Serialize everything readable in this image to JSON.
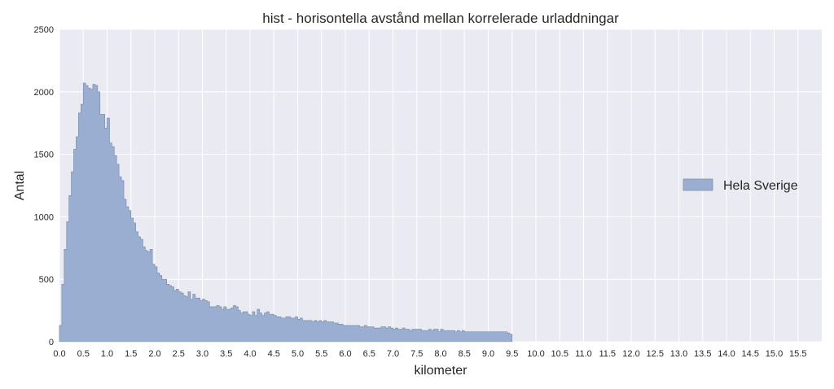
{
  "chart_data": {
    "type": "bar",
    "title": "hist - horisontella avstånd mellan korrelerade urladdningar",
    "xlabel": "kilometer",
    "ylabel": "Antal",
    "xlim": [
      0.0,
      16.0
    ],
    "ylim": [
      0,
      2500
    ],
    "x_ticks": [
      "0.0",
      "0.5",
      "1.0",
      "1.5",
      "2.0",
      "2.5",
      "3.0",
      "3.5",
      "4.0",
      "4.5",
      "5.0",
      "5.5",
      "6.0",
      "6.5",
      "7.0",
      "7.5",
      "8.0",
      "8.5",
      "9.0",
      "9.5",
      "10.0",
      "10.5",
      "11.0",
      "11.5",
      "12.0",
      "12.5",
      "13.0",
      "13.5",
      "14.0",
      "14.5",
      "15.0",
      "15.5"
    ],
    "y_ticks": [
      "0",
      "500",
      "1000",
      "1500",
      "2000",
      "2500"
    ],
    "grid": true,
    "legend_position": "center-right",
    "bin_width": 0.05,
    "bin_start": 0.0,
    "series": [
      {
        "name": "Hela Sverige",
        "color": "#9aaed1",
        "values": [
          130,
          460,
          740,
          960,
          1170,
          1360,
          1540,
          1640,
          1830,
          1900,
          2070,
          2050,
          2030,
          2020,
          2060,
          2050,
          2000,
          1820,
          1820,
          1710,
          1790,
          1590,
          1560,
          1490,
          1420,
          1320,
          1290,
          1140,
          1080,
          1050,
          990,
          950,
          880,
          840,
          820,
          760,
          730,
          720,
          740,
          620,
          600,
          550,
          530,
          500,
          500,
          460,
          450,
          440,
          410,
          420,
          400,
          390,
          370,
          360,
          400,
          340,
          380,
          350,
          350,
          330,
          340,
          330,
          320,
          280,
          280,
          280,
          290,
          280,
          260,
          280,
          260,
          260,
          270,
          290,
          280,
          250,
          230,
          240,
          240,
          220,
          210,
          240,
          210,
          260,
          230,
          210,
          230,
          240,
          220,
          220,
          210,
          200,
          200,
          190,
          190,
          200,
          200,
          190,
          190,
          200,
          180,
          190,
          170,
          170,
          170,
          170,
          160,
          170,
          160,
          170,
          160,
          170,
          160,
          160,
          160,
          150,
          150,
          140,
          140,
          130,
          130,
          130,
          130,
          130,
          130,
          130,
          120,
          120,
          130,
          120,
          120,
          120,
          110,
          110,
          110,
          120,
          120,
          110,
          120,
          110,
          100,
          110,
          100,
          100,
          110,
          100,
          100,
          90,
          100,
          100,
          100,
          100,
          90,
          90,
          90,
          100,
          90,
          100,
          100,
          80,
          100,
          90,
          90,
          90,
          90,
          90,
          80,
          90,
          80,
          90,
          80,
          80,
          80,
          80,
          80,
          80,
          80,
          80,
          80,
          80,
          80,
          80,
          80,
          80,
          80,
          80,
          80,
          80,
          70,
          60
        ]
      }
    ]
  }
}
